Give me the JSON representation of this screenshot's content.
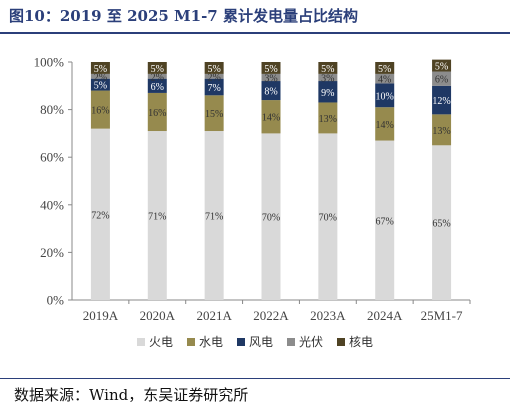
{
  "header": {
    "title": "图10：2019 至 2025 M1-7 累计发电量占比结构"
  },
  "footer": {
    "source": "数据来源：Wind，东吴证券研究所"
  },
  "chart_data": {
    "type": "bar",
    "stacked": true,
    "categories": [
      "2019A",
      "2020A",
      "2021A",
      "2022A",
      "2023A",
      "2024A",
      "25M1-7"
    ],
    "yticks": [
      "0%",
      "20%",
      "40%",
      "60%",
      "80%",
      "100%"
    ],
    "ylim": [
      0,
      100
    ],
    "legend_position": "bottom",
    "series": [
      {
        "name": "火电",
        "color": "#d9d9d9",
        "values": [
          72,
          71,
          71,
          70,
          70,
          67,
          65
        ],
        "labels": [
          "72%",
          "71%",
          "71%",
          "70%",
          "70%",
          "67%",
          "65%"
        ]
      },
      {
        "name": "水电",
        "color": "#968a4e",
        "values": [
          16,
          16,
          15,
          14,
          13,
          14,
          13
        ],
        "labels": [
          "16%",
          "16%",
          "15%",
          "14%",
          "13%",
          "14%",
          "13%"
        ]
      },
      {
        "name": "风电",
        "color": "#1f3864",
        "values": [
          5,
          6,
          7,
          8,
          9,
          10,
          12
        ],
        "labels": [
          "5%",
          "6%",
          "7%",
          "8%",
          "9%",
          "10%",
          "12%"
        ]
      },
      {
        "name": "光伏",
        "color": "#8c8c8c",
        "values": [
          2,
          2,
          2,
          3,
          3,
          4,
          6
        ],
        "labels": [
          "2%",
          "2%",
          "2%",
          "3%",
          "3%",
          "4%",
          "6%"
        ]
      },
      {
        "name": "核电",
        "color": "#4f4324",
        "values": [
          5,
          5,
          5,
          5,
          5,
          5,
          5
        ],
        "labels": [
          "5%",
          "5%",
          "5%",
          "5%",
          "5%",
          "5%",
          "5%"
        ]
      }
    ]
  }
}
